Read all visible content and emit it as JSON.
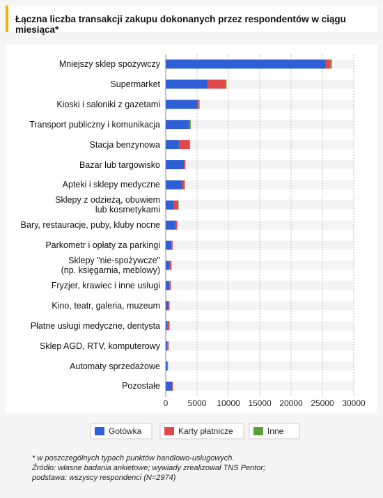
{
  "chart_data": {
    "type": "bar",
    "orientation": "horizontal",
    "stacked": true,
    "title": "Łączna liczba transakcji zakupu dokonanych przez respondentów w ciągu miesiąca*",
    "categories": [
      "Mniejszy sklep spożywczy",
      "Supermarket",
      "Kioski i saloniki z gazetami",
      "Transport publiczny i komunikacja",
      "Stacja benzynowa",
      "Bazar lub targowisko",
      "Apteki i sklepy medyczne",
      "Sklepy z odzieżą, obuwiem\nlub kosmetykami",
      "Bary, restauracje, puby, kluby nocne",
      "Parkometr i opłaty za parkingi",
      "Sklepy \"nie-spożywcze\"\n(np. księgarnia, meblowy)",
      "Fryzjer, krawiec i inne usługi",
      "Kino, teatr, galeria, muzeum",
      "Płatne usługi medyczne, dentysta",
      "Sklep AGD, RTV, komputerowy",
      "Automaty sprzedażowe",
      "Pozostałe"
    ],
    "series": [
      {
        "name": "Gotówka",
        "color": "#2e5fd6",
        "values": [
          25500,
          6700,
          5100,
          3700,
          2100,
          2900,
          2600,
          1300,
          1500,
          900,
          600,
          600,
          400,
          300,
          250,
          250,
          1000
        ]
      },
      {
        "name": "Karty płatnicze",
        "color": "#e2474c",
        "values": [
          800,
          2800,
          200,
          200,
          1700,
          200,
          400,
          700,
          300,
          200,
          300,
          200,
          200,
          300,
          200,
          100,
          100
        ]
      },
      {
        "name": "Inne",
        "color": "#5a9e3a",
        "values": [
          200,
          200,
          100,
          100,
          100,
          50,
          50,
          50,
          50,
          20,
          20,
          20,
          20,
          20,
          20,
          20,
          50
        ]
      }
    ],
    "xlim": [
      0,
      30000
    ],
    "xticks": [
      0,
      5000,
      10000,
      15000,
      20000,
      25000,
      30000
    ],
    "grid": true,
    "footnotes": [
      "* w poszczególnych typach punktów handlowo-usługowych.",
      "Źródło: własne badania ankietowe; wywiady zrealizował TNS Pentor;",
      "podstawa: wszyscy respondenci (N=2974)"
    ]
  }
}
